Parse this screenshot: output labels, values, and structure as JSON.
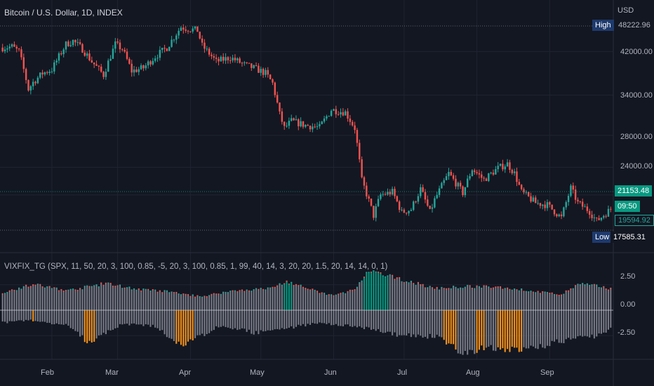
{
  "header": {
    "title": "Bitcoin / U.S. Dollar, 1D, INDEX",
    "currency": "USD"
  },
  "indicator": {
    "title": "VIXFIX_TG (SPX, 11, 50, 20, 3, 100, 0.85, -5, 20, 3, 100, 0.85, 1, 99, 40, 14, 3, 20, 20, 1.5, 20, 14, 14, 0, 1)"
  },
  "price_axis": {
    "ticks": [
      "42000.00",
      "34000.00",
      "28000.00",
      "24000.00"
    ],
    "high_label": "High",
    "high_value": "48222.96",
    "low_label": "Low",
    "low_value": "17585.31",
    "current_price": "21153.48",
    "countdown": "09:50",
    "prev_price": "19594.92"
  },
  "indicator_axis": {
    "ticks": [
      "2.50",
      "0.00",
      "-2.50"
    ]
  },
  "time_axis": {
    "labels": [
      "Feb",
      "Mar",
      "Apr",
      "May",
      "Jun",
      "Jul",
      "Aug",
      "Sep"
    ]
  },
  "colors": {
    "background": "#131722",
    "up": "#26a69a",
    "down": "#ef5350",
    "gray_bar": "#787b86",
    "green_bar": "#089981",
    "orange_bar": "#f7931a",
    "tag_bg": "#1e3a6d",
    "current_tag_bg": "#089981"
  },
  "chart_data": [
    {
      "type": "candlestick",
      "title": "Bitcoin / U.S. Dollar, 1D, INDEX",
      "x_range": [
        "2022-01-11",
        "2022-09-27"
      ],
      "ylim": [
        17000,
        50000
      ],
      "y_scale": "log",
      "keypoints": [
        [
          "2022-01-11",
          42800
        ],
        [
          "2022-01-15",
          43000
        ],
        [
          "2022-01-18",
          42000
        ],
        [
          "2022-01-22",
          35000
        ],
        [
          "2022-01-24",
          36200
        ],
        [
          "2022-01-28",
          37800
        ],
        [
          "2022-02-01",
          38500
        ],
        [
          "2022-02-07",
          43500
        ],
        [
          "2022-02-10",
          44200
        ],
        [
          "2022-02-14",
          42500
        ],
        [
          "2022-02-18",
          40000
        ],
        [
          "2022-02-23",
          37500
        ],
        [
          "2022-02-28",
          43500
        ],
        [
          "2022-03-03",
          42500
        ],
        [
          "2022-03-07",
          38200
        ],
        [
          "2022-03-12",
          38800
        ],
        [
          "2022-03-17",
          41000
        ],
        [
          "2022-03-22",
          42800
        ],
        [
          "2022-03-28",
          47300
        ],
        [
          "2022-03-30",
          47000
        ],
        [
          "2022-04-04",
          46500
        ],
        [
          "2022-04-06",
          43200
        ],
        [
          "2022-04-12",
          40000
        ],
        [
          "2022-04-18",
          40800
        ],
        [
          "2022-04-24",
          39400
        ],
        [
          "2022-04-29",
          38600
        ],
        [
          "2022-05-03",
          37800
        ],
        [
          "2022-05-06",
          36000
        ],
        [
          "2022-05-09",
          31000
        ],
        [
          "2022-05-11",
          29000
        ],
        [
          "2022-05-14",
          30000
        ],
        [
          "2022-05-20",
          29400
        ],
        [
          "2022-05-26",
          29100
        ],
        [
          "2022-05-31",
          31700
        ],
        [
          "2022-06-06",
          31300
        ],
        [
          "2022-06-10",
          29000
        ],
        [
          "2022-06-13",
          22500
        ],
        [
          "2022-06-18",
          19000
        ],
        [
          "2022-06-21",
          21000
        ],
        [
          "2022-06-26",
          21300
        ],
        [
          "2022-06-30",
          19300
        ],
        [
          "2022-07-04",
          19600
        ],
        [
          "2022-07-08",
          21600
        ],
        [
          "2022-07-12",
          19300
        ],
        [
          "2022-07-14",
          20500
        ],
        [
          "2022-07-20",
          23300
        ],
        [
          "2022-07-26",
          21200
        ],
        [
          "2022-07-30",
          23800
        ],
        [
          "2022-08-04",
          22600
        ],
        [
          "2022-08-10",
          23900
        ],
        [
          "2022-08-14",
          24400
        ],
        [
          "2022-08-17",
          23300
        ],
        [
          "2022-08-20",
          21300
        ],
        [
          "2022-08-26",
          20200
        ],
        [
          "2022-08-31",
          20000
        ],
        [
          "2022-09-06",
          18800
        ],
        [
          "2022-09-10",
          21700
        ],
        [
          "2022-09-13",
          20200
        ],
        [
          "2022-09-18",
          19400
        ],
        [
          "2022-09-21",
          18500
        ],
        [
          "2022-09-27",
          19600
        ]
      ]
    },
    {
      "type": "bar",
      "title": "VIXFIX_TG",
      "x_range": [
        "2022-01-11",
        "2022-09-27"
      ],
      "ylim": [
        -4.0,
        4.0
      ],
      "upper_series_keypoints": [
        [
          "2022-01-11",
          1.7
        ],
        [
          "2022-01-24",
          2.5
        ],
        [
          "2022-02-08",
          1.9
        ],
        [
          "2022-02-24",
          2.6
        ],
        [
          "2022-03-10",
          2.0
        ],
        [
          "2022-03-22",
          1.8
        ],
        [
          "2022-04-05",
          1.3
        ],
        [
          "2022-04-20",
          1.9
        ],
        [
          "2022-05-05",
          2.1
        ],
        [
          "2022-05-12",
          2.8
        ],
        [
          "2022-05-26",
          1.7
        ],
        [
          "2022-06-01",
          1.4
        ],
        [
          "2022-06-10",
          2.0
        ],
        [
          "2022-06-16",
          3.8
        ],
        [
          "2022-06-30",
          3.0
        ],
        [
          "2022-07-14",
          2.1
        ],
        [
          "2022-07-28",
          2.3
        ],
        [
          "2022-08-12",
          2.2
        ],
        [
          "2022-08-26",
          1.8
        ],
        [
          "2022-09-06",
          1.5
        ],
        [
          "2022-09-14",
          2.6
        ],
        [
          "2022-09-27",
          2.1
        ]
      ],
      "lower_series_keypoints": [
        [
          "2022-01-11",
          -1.2
        ],
        [
          "2022-01-24",
          -1.0
        ],
        [
          "2022-02-08",
          -1.5
        ],
        [
          "2022-02-17",
          -3.3
        ],
        [
          "2022-03-03",
          -1.3
        ],
        [
          "2022-03-17",
          -1.6
        ],
        [
          "2022-03-28",
          -3.5
        ],
        [
          "2022-04-14",
          -1.5
        ],
        [
          "2022-04-28",
          -2.2
        ],
        [
          "2022-05-12",
          -1.8
        ],
        [
          "2022-05-26",
          -1.2
        ],
        [
          "2022-06-16",
          -1.8
        ],
        [
          "2022-06-30",
          -2.5
        ],
        [
          "2022-07-15",
          -2.6
        ],
        [
          "2022-07-26",
          -4.2
        ],
        [
          "2022-08-04",
          -3.7
        ],
        [
          "2022-08-14",
          -4.0
        ],
        [
          "2022-08-24",
          -3.8
        ],
        [
          "2022-09-06",
          -3.0
        ],
        [
          "2022-09-20",
          -2.6
        ],
        [
          "2022-09-27",
          -1.8
        ]
      ],
      "green_highlight_ranges": [
        [
          "2022-05-11",
          "2022-05-14"
        ],
        [
          "2022-06-14",
          "2022-06-24"
        ]
      ],
      "orange_highlight_ranges": [
        [
          "2022-01-24",
          "2022-01-24"
        ],
        [
          "2022-02-15",
          "2022-02-19"
        ],
        [
          "2022-03-26",
          "2022-04-02"
        ],
        [
          "2022-07-18",
          "2022-07-23"
        ],
        [
          "2022-08-01",
          "2022-08-04"
        ],
        [
          "2022-08-10",
          "2022-08-20"
        ]
      ]
    }
  ]
}
